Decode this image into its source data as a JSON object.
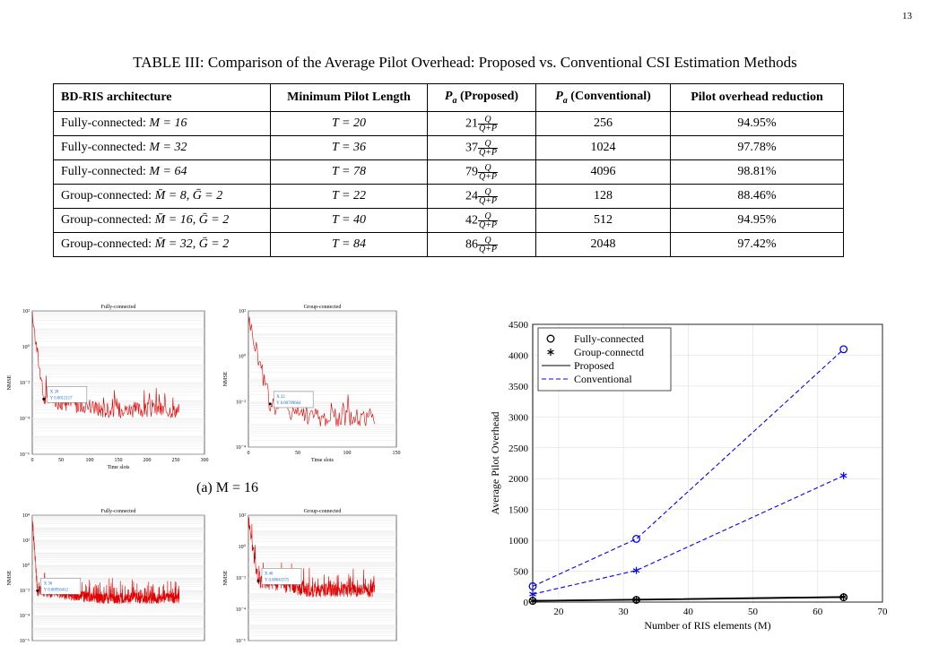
{
  "page_number": "13",
  "table": {
    "caption": "TABLE III: Comparison of the Average Pilot Overhead: Proposed vs. Conventional CSI Estimation Methods",
    "headers": [
      "BD-RIS architecture",
      "Minimum Pilot Length",
      "Pa (Proposed)",
      "Pa (Conventional)",
      "Pilot overhead reduction"
    ],
    "header_parts": {
      "pa_symbol": "P",
      "pa_sub": "a",
      "proposed": "(Proposed)",
      "conventional": "(Conventional)"
    },
    "frac": {
      "num": "Q",
      "den": "Q+P"
    },
    "rows": [
      {
        "arch_prefix": "Fully-connected:",
        "arch_math": "M = 16",
        "T": "T = 20",
        "coef": "21",
        "conventional": "256",
        "reduction": "94.95%"
      },
      {
        "arch_prefix": "Fully-connected:",
        "arch_math": "M = 32",
        "T": "T = 36",
        "coef": "37",
        "conventional": "1024",
        "reduction": "97.78%"
      },
      {
        "arch_prefix": "Fully-connected:",
        "arch_math": "M = 64",
        "T": "T = 78",
        "coef": "79",
        "conventional": "4096",
        "reduction": "98.81%"
      },
      {
        "arch_prefix": "Group-connected:",
        "arch_math": "M̄ = 8, Ḡ = 2",
        "T": "T = 22",
        "coef": "24",
        "conventional": "128",
        "reduction": "88.46%"
      },
      {
        "arch_prefix": "Group-connected:",
        "arch_math": "M̄ = 16, Ḡ = 2",
        "T": "T = 40",
        "coef": "42",
        "conventional": "512",
        "reduction": "94.95%"
      },
      {
        "arch_prefix": "Group-connected:",
        "arch_math": "M̄ = 32, Ḡ = 2",
        "T": "T = 84",
        "coef": "86",
        "conventional": "2048",
        "reduction": "97.42%"
      }
    ]
  },
  "subcaption_a": "(a) M = 16",
  "small_plots": [
    {
      "title": "Fully-connected",
      "ylabel": "NMSE",
      "xlabel": "Time slots",
      "xticks": [
        "0",
        "50",
        "100",
        "150",
        "200",
        "250",
        "300"
      ],
      "yticks": [
        "10⁻⁶",
        "10⁻⁴",
        "10⁻²",
        "10⁰",
        "10²"
      ],
      "dtx": "X 20",
      "dty": "Y 0.0012117",
      "x_max": 300,
      "y_log_range": [
        -6,
        2
      ],
      "n": 256,
      "datatip": [
        20,
        0.0012117
      ]
    },
    {
      "title": "Group-connected",
      "ylabel": "NMSE",
      "xlabel": "Time slots",
      "xticks": [
        "0",
        "50",
        "100",
        "150"
      ],
      "yticks": [
        "10⁻⁴",
        "10⁻²",
        "10⁰",
        "10²"
      ],
      "dtx": "X 22",
      "dty": "Y 0.00789664",
      "x_max": 150,
      "y_log_range": [
        -4,
        2
      ],
      "n": 128,
      "datatip": [
        22,
        0.00789664
      ]
    },
    {
      "title": "Fully-connected",
      "ylabel": "NMSE",
      "xlabel": "",
      "xticks": [],
      "yticks": [
        "10⁻⁶",
        "10⁻⁴",
        "10⁻²",
        "10⁰",
        "10²",
        "10⁴"
      ],
      "dtx": "X 36",
      "dty": "Y 0.00956412",
      "x_max": 1200,
      "y_log_range": [
        -6,
        4
      ],
      "n": 1024,
      "datatip": [
        36,
        0.00956412
      ]
    },
    {
      "title": "Group-connected",
      "ylabel": "NMSE",
      "xlabel": "",
      "xticks": [],
      "yticks": [
        "10⁻⁶",
        "10⁻⁴",
        "10⁻²",
        "10⁰",
        "10²"
      ],
      "dtx": "X 40",
      "dty": "Y 0.00643375",
      "x_max": 600,
      "y_log_range": [
        -6,
        2
      ],
      "n": 512,
      "datatip": [
        40,
        0.00643375
      ]
    }
  ],
  "chart_data": {
    "type": "line",
    "title": "",
    "xlabel": "Number of RIS elements (M)",
    "ylabel": "Average Pilot Overhead",
    "xlim": [
      16,
      70
    ],
    "ylim": [
      0,
      4500
    ],
    "xticks": [
      20,
      30,
      40,
      50,
      60,
      70
    ],
    "yticks": [
      0,
      500,
      1000,
      1500,
      2000,
      2500,
      3000,
      3500,
      4000,
      4500
    ],
    "grid": true,
    "legend_position": "top-left",
    "legend": [
      "Fully-connected",
      "Group-connectd",
      "Proposed",
      "Conventional"
    ],
    "series": [
      {
        "group": "Fully-connected",
        "method": "Conventional",
        "marker": "circle",
        "color": "#0000ff",
        "x": [
          16,
          32,
          64
        ],
        "y": [
          256,
          1024,
          4096
        ]
      },
      {
        "group": "Group-connectd",
        "method": "Conventional",
        "marker": "asterisk",
        "color": "#0000ff",
        "x": [
          16,
          32,
          64
        ],
        "y": [
          128,
          512,
          2048
        ]
      },
      {
        "group": "Fully-connected",
        "method": "Proposed",
        "marker": "circle",
        "color": "#000000",
        "x": [
          16,
          32,
          64
        ],
        "y": [
          20,
          36,
          78
        ]
      },
      {
        "group": "Group-connectd",
        "method": "Proposed",
        "marker": "asterisk",
        "color": "#000000",
        "x": [
          16,
          32,
          64
        ],
        "y": [
          22,
          40,
          84
        ]
      }
    ]
  }
}
